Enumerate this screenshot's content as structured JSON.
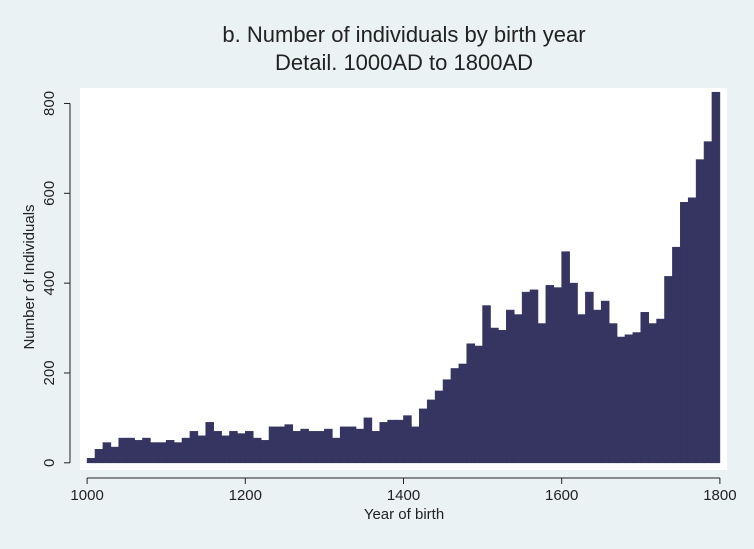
{
  "chart_data": {
    "type": "histogram",
    "title": "b. Number of individuals by birth year",
    "subtitle": "Detail. 1000AD to 1800AD",
    "xlabel": "Year of birth",
    "ylabel": "Number of Individuals",
    "color": "#363561",
    "bins": [
      1000,
      1010,
      1020,
      1030,
      1040,
      1050,
      1060,
      1070,
      1080,
      1090,
      1100,
      1110,
      1120,
      1130,
      1140,
      1150,
      1160,
      1170,
      1180,
      1190,
      1200,
      1210,
      1220,
      1230,
      1240,
      1250,
      1260,
      1270,
      1280,
      1290,
      1300,
      1310,
      1320,
      1330,
      1340,
      1350,
      1360,
      1370,
      1380,
      1390,
      1400,
      1410,
      1420,
      1430,
      1440,
      1450,
      1460,
      1470,
      1480,
      1490,
      1500,
      1510,
      1520,
      1530,
      1540,
      1550,
      1560,
      1570,
      1580,
      1590,
      1600,
      1610,
      1620,
      1630,
      1640,
      1650,
      1660,
      1670,
      1680,
      1690,
      1700,
      1710,
      1720,
      1730,
      1740,
      1750,
      1760,
      1770,
      1780,
      1790,
      1800
    ],
    "values": [
      10,
      30,
      45,
      35,
      55,
      55,
      50,
      55,
      45,
      45,
      50,
      45,
      55,
      70,
      60,
      90,
      70,
      60,
      70,
      65,
      70,
      55,
      50,
      80,
      80,
      85,
      70,
      75,
      70,
      70,
      75,
      55,
      80,
      80,
      75,
      100,
      70,
      90,
      95,
      95,
      105,
      80,
      120,
      140,
      160,
      185,
      210,
      220,
      265,
      260,
      350,
      300,
      295,
      340,
      330,
      380,
      385,
      310,
      395,
      390,
      470,
      400,
      330,
      380,
      340,
      360,
      310,
      280,
      285,
      290,
      335,
      310,
      320,
      415,
      480,
      580,
      590,
      675,
      715,
      825
    ],
    "xlim": [
      991,
      1809
    ],
    "ylim": [
      -16,
      830
    ],
    "xticks": [
      1000,
      1200,
      1400,
      1600,
      1800
    ],
    "yticks": [
      0,
      200,
      400,
      600,
      800
    ]
  }
}
